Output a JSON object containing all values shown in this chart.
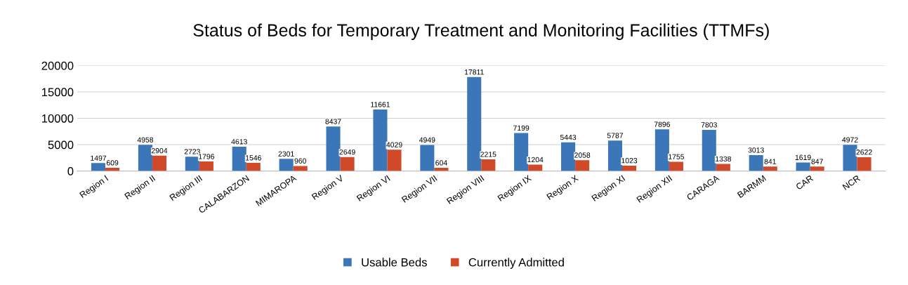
{
  "chart_data": {
    "type": "bar",
    "title": "Status of Beds for Temporary Treatment and Monitoring Facilities (TTMFs)",
    "categories": [
      "Region I",
      "Region II",
      "Region III",
      "CALABARZON",
      "MIMAROPA",
      "Region V",
      "Region VI",
      "Region VII",
      "Region VIII",
      "Region IX",
      "Region X",
      "Region XI",
      "Region XII",
      "CARAGA",
      "BARMM",
      "CAR",
      "NCR"
    ],
    "series": [
      {
        "name": "Usable Beds",
        "color": "#3b76b8",
        "values": [
          1497,
          4958,
          2723,
          4613,
          2301,
          8437,
          11661,
          4949,
          17811,
          7199,
          5443,
          5787,
          7896,
          7803,
          3013,
          1619,
          4972
        ]
      },
      {
        "name": "Currently Admitted",
        "color": "#d04a2a",
        "values": [
          609,
          2904,
          1796,
          1546,
          960,
          2649,
          4029,
          604,
          2215,
          1204,
          2058,
          1023,
          1755,
          1338,
          841,
          847,
          2622
        ]
      }
    ],
    "ylim": [
      0,
      20000
    ],
    "yticks": [
      0,
      5000,
      10000,
      15000,
      20000
    ],
    "grid": "y",
    "legend": "bottom",
    "data_labels": true
  }
}
